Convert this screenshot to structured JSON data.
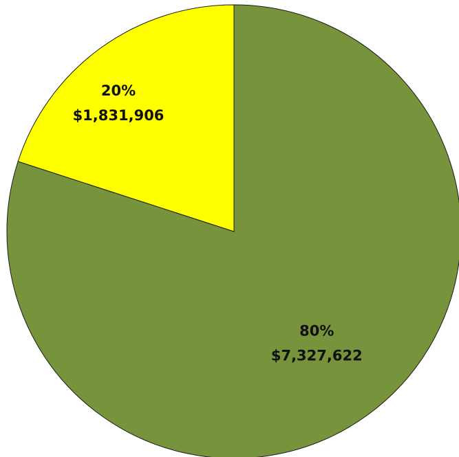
{
  "chart_data": {
    "type": "pie",
    "slices": [
      {
        "percent_label": "20%",
        "value_label": "$1,831,906",
        "value": 1831906,
        "color": "#ffff00"
      },
      {
        "percent_label": "80%",
        "value_label": "$7,327,622",
        "value": 7327622,
        "color": "#77933c"
      }
    ],
    "start_angle_deg": -90,
    "direction": "counterclockwise",
    "legend": "none",
    "title": ""
  }
}
